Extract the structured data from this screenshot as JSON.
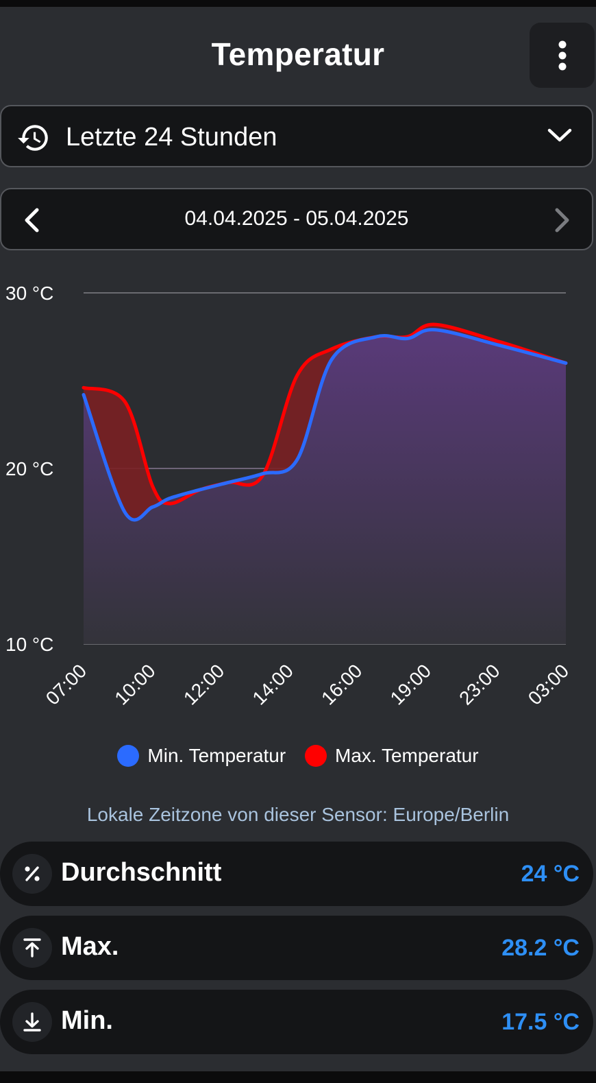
{
  "header": {
    "title": "Temperatur",
    "menu_icon": "more-vert-icon"
  },
  "range_selector": {
    "icon": "history-icon",
    "label": "Letzte 24 Stunden",
    "dropdown_icon": "chevron-down-icon"
  },
  "date_navigation": {
    "label": "04.04.2025 - 05.04.2025",
    "prev_icon": "chevron-left-icon",
    "next_icon": "chevron-right-icon"
  },
  "chart_data": {
    "type": "area",
    "title": "",
    "xlabel": "",
    "ylabel": "",
    "ylim": [
      10,
      30
    ],
    "yticks": [
      "10 °C",
      "20 °C",
      "30 °C"
    ],
    "y_tick_values": [
      10,
      20,
      30
    ],
    "x_tick_labels": [
      "07:00",
      "10:00",
      "12:00",
      "14:00",
      "16:00",
      "19:00",
      "23:00",
      "03:00"
    ],
    "grid": true,
    "legend_placement": "bottom",
    "x": [
      0,
      0.6,
      1,
      1.25,
      1.7,
      2.1,
      2.6,
      3.1,
      3.6,
      4.25,
      4.7,
      5.1,
      6.05,
      7
    ],
    "series": [
      {
        "name": "Min. Temperatur",
        "color": "#2b6bff",
        "values": [
          24.2,
          17.5,
          17.8,
          18.3,
          18.8,
          19.2,
          19.7,
          20.5,
          26.2,
          27.5,
          27.4,
          27.9,
          27.0,
          26.0
        ]
      },
      {
        "name": "Max. Temperatur",
        "color": "#ff0000",
        "values": [
          24.6,
          23.8,
          19.0,
          18.0,
          18.8,
          19.2,
          19.6,
          25.3,
          26.8,
          27.5,
          27.5,
          28.2,
          27.2,
          26.0
        ]
      }
    ]
  },
  "timezone_note": "Lokale Zeitzone von dieser Sensor: Europe/Berlin",
  "stats": [
    {
      "icon": "percent-icon",
      "label": "Durchschnitt",
      "value": "24 °C"
    },
    {
      "icon": "arrow-up-to-line-icon",
      "label": "Max.",
      "value": "28.2 °C"
    },
    {
      "icon": "arrow-down-to-line-icon",
      "label": "Min.",
      "value": "17.5 °C"
    }
  ]
}
